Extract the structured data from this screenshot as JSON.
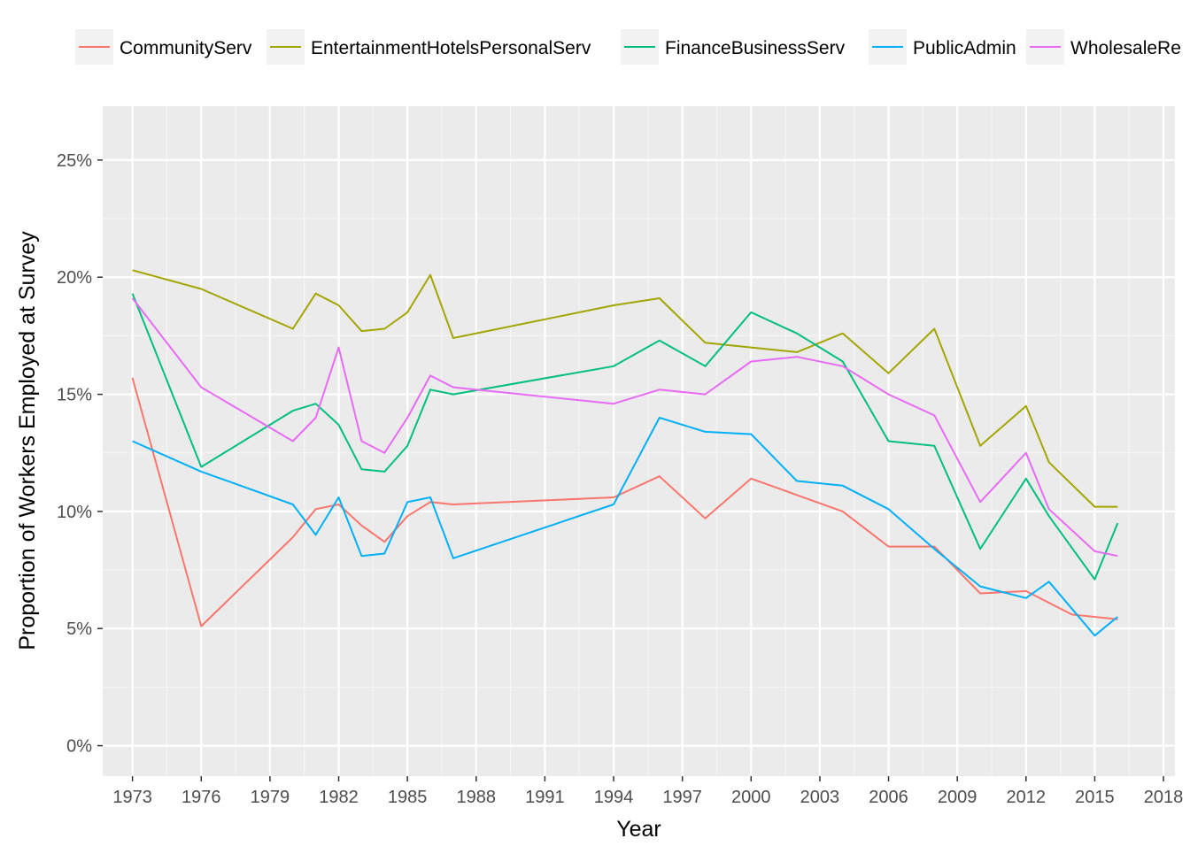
{
  "chart_data": {
    "type": "line",
    "title": "",
    "xlabel": "Year",
    "ylabel": "Proportion of Workers Employed at Survey",
    "xlim": [
      1971.7,
      2018.5
    ],
    "ylim": [
      -1.3,
      27.3
    ],
    "x_ticks": [
      "1973",
      "1976",
      "1979",
      "1982",
      "1985",
      "1988",
      "1991",
      "1994",
      "1997",
      "2000",
      "2003",
      "2006",
      "2009",
      "2012",
      "2015",
      "2018"
    ],
    "x_tick_values": [
      1973,
      1976,
      1979,
      1982,
      1985,
      1988,
      1991,
      1994,
      1997,
      2000,
      2003,
      2006,
      2009,
      2012,
      2015,
      2018
    ],
    "y_ticks": [
      "0%",
      "5%",
      "10%",
      "15%",
      "20%",
      "25%"
    ],
    "y_tick_values": [
      0,
      5,
      10,
      15,
      20,
      25
    ],
    "grid": true,
    "legend_position": "top",
    "legend_visible_labels": [
      "CommunityServ",
      "EntertainmentHotelsPersonalServ",
      "FinanceBusinessServ",
      "PublicAdmin",
      "WholesaleRe"
    ],
    "series": [
      {
        "name": "CommunityServ",
        "color": "#F8766D",
        "x": [
          1973,
          1976,
          1980,
          1981,
          1982,
          1983,
          1984,
          1985,
          1986,
          1987,
          1994,
          1996,
          1998,
          2000,
          2004,
          2006,
          2008,
          2010,
          2012,
          2014,
          2016
        ],
        "y": [
          15.7,
          5.1,
          8.9,
          10.1,
          10.3,
          9.4,
          8.7,
          9.8,
          10.4,
          10.3,
          10.6,
          11.5,
          9.7,
          11.4,
          10.0,
          8.5,
          8.5,
          6.5,
          6.6,
          5.6,
          5.4
        ]
      },
      {
        "name": "EntertainmentHotelsPersonalServ",
        "color": "#A3A500",
        "x": [
          1973,
          1976,
          1980,
          1981,
          1982,
          1983,
          1984,
          1985,
          1986,
          1987,
          1994,
          1996,
          1998,
          2000,
          2002,
          2004,
          2006,
          2008,
          2010,
          2012,
          2013,
          2015,
          2016
        ],
        "y": [
          20.3,
          19.5,
          17.8,
          19.3,
          18.8,
          17.7,
          17.8,
          18.5,
          20.1,
          17.4,
          18.8,
          19.1,
          17.2,
          17.0,
          16.8,
          17.6,
          15.9,
          17.8,
          12.8,
          14.5,
          12.1,
          10.2,
          10.2
        ]
      },
      {
        "name": "FinanceBusinessServ",
        "color": "#00BF7D",
        "x": [
          1973,
          1976,
          1980,
          1981,
          1982,
          1983,
          1984,
          1985,
          1986,
          1987,
          1994,
          1996,
          1998,
          2000,
          2002,
          2004,
          2006,
          2008,
          2010,
          2012,
          2013,
          2015,
          2016
        ],
        "y": [
          19.3,
          11.9,
          14.3,
          14.6,
          13.7,
          11.8,
          11.7,
          12.8,
          15.2,
          15.0,
          16.2,
          17.3,
          16.2,
          18.5,
          17.6,
          16.4,
          13.0,
          12.8,
          8.4,
          11.4,
          9.8,
          7.1,
          9.5
        ]
      },
      {
        "name": "PublicAdmin",
        "color": "#00B0F6",
        "x": [
          1973,
          1976,
          1980,
          1981,
          1982,
          1983,
          1984,
          1985,
          1986,
          1987,
          1994,
          1996,
          1998,
          2000,
          2002,
          2004,
          2006,
          2008,
          2010,
          2012,
          2013,
          2015,
          2016
        ],
        "y": [
          13.0,
          11.7,
          10.3,
          9.0,
          10.6,
          8.1,
          8.2,
          10.4,
          10.6,
          8.0,
          10.3,
          14.0,
          13.4,
          13.3,
          11.3,
          11.1,
          10.1,
          8.4,
          6.8,
          6.3,
          7.0,
          4.7,
          5.5
        ]
      },
      {
        "name": "WholesaleRe",
        "color": "#E76BF3",
        "x": [
          1973,
          1976,
          1980,
          1981,
          1982,
          1983,
          1984,
          1985,
          1986,
          1987,
          1994,
          1996,
          1998,
          2000,
          2002,
          2004,
          2006,
          2008,
          2010,
          2012,
          2013,
          2015,
          2016
        ],
        "y": [
          19.1,
          15.3,
          13.0,
          14.0,
          17.0,
          13.0,
          12.5,
          14.0,
          15.8,
          15.3,
          14.6,
          15.2,
          15.0,
          16.4,
          16.6,
          16.2,
          15.0,
          14.1,
          10.4,
          12.5,
          10.1,
          8.3,
          8.1
        ]
      }
    ]
  }
}
